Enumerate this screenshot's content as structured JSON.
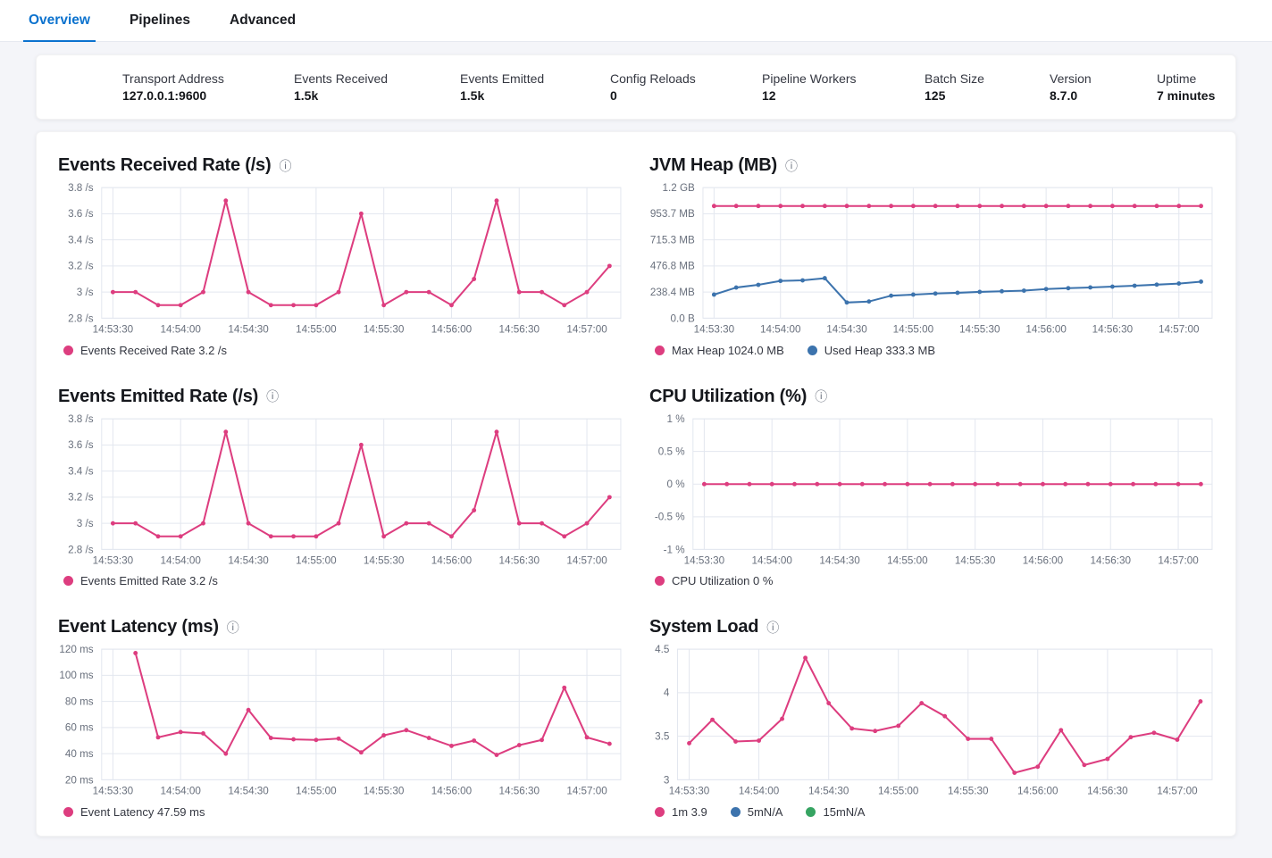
{
  "tabs": [
    {
      "label": "Overview",
      "active": true
    },
    {
      "label": "Pipelines",
      "active": false
    },
    {
      "label": "Advanced",
      "active": false
    }
  ],
  "stats": [
    {
      "label": "Transport Address",
      "value": "127.0.0.1:9600"
    },
    {
      "label": "Events Received",
      "value": "1.5k"
    },
    {
      "label": "Events Emitted",
      "value": "1.5k"
    },
    {
      "label": "Config Reloads",
      "value": "0"
    },
    {
      "label": "Pipeline Workers",
      "value": "12"
    },
    {
      "label": "Batch Size",
      "value": "125"
    },
    {
      "label": "Version",
      "value": "8.7.0"
    },
    {
      "label": "Uptime",
      "value": "7 minutes"
    }
  ],
  "colors": {
    "pink": "#dd3d7f",
    "blue": "#3c73ad",
    "green": "#36a462",
    "tab_active": "#0b72ce",
    "axis_text": "#69707d",
    "grid": "#e3e7ef",
    "legend_text": "#343741"
  },
  "info_icon_glyph": "ⓘ",
  "chart_data": [
    {
      "id": "events-received-rate",
      "type": "line",
      "title": "Events Received Rate (/s)",
      "x_domain": [
        -5,
        225
      ],
      "x_tick_seconds": [
        0,
        30,
        60,
        90,
        120,
        150,
        180,
        210
      ],
      "x_tick_labels": [
        "14:53:30",
        "14:54:00",
        "14:54:30",
        "14:55:00",
        "14:55:30",
        "14:56:00",
        "14:56:30",
        "14:57:00"
      ],
      "y_domain": [
        2.8,
        3.8
      ],
      "y_ticks": [
        {
          "label": "3.8 /s",
          "value": 3.8
        },
        {
          "label": "3.6 /s",
          "value": 3.6
        },
        {
          "label": "3.4 /s",
          "value": 3.4
        },
        {
          "label": "3.2 /s",
          "value": 3.2
        },
        {
          "label": "3 /s",
          "value": 3.0
        },
        {
          "label": "2.8 /s",
          "value": 2.8
        }
      ],
      "series": [
        {
          "name": "Events Received Rate",
          "color": "#dd3d7f",
          "points": [
            [
              0,
              3.0
            ],
            [
              10,
              3.0
            ],
            [
              20,
              2.9
            ],
            [
              30,
              2.9
            ],
            [
              40,
              3.0
            ],
            [
              50,
              3.7
            ],
            [
              60,
              3.0
            ],
            [
              70,
              2.9
            ],
            [
              80,
              2.9
            ],
            [
              90,
              2.9
            ],
            [
              100,
              3.0
            ],
            [
              110,
              3.6
            ],
            [
              120,
              2.9
            ],
            [
              130,
              3.0
            ],
            [
              140,
              3.0
            ],
            [
              150,
              2.9
            ],
            [
              160,
              3.1
            ],
            [
              170,
              3.7
            ],
            [
              180,
              3.0
            ],
            [
              190,
              3.0
            ],
            [
              200,
              2.9
            ],
            [
              210,
              3.0
            ],
            [
              220,
              3.2
            ]
          ]
        }
      ],
      "legend": [
        {
          "label": "Events Received Rate 3.2 /s",
          "color": "#dd3d7f"
        }
      ]
    },
    {
      "id": "jvm-heap",
      "type": "line",
      "title": "JVM Heap (MB)",
      "x_domain": [
        -5,
        225
      ],
      "x_tick_seconds": [
        0,
        30,
        60,
        90,
        120,
        150,
        180,
        210
      ],
      "x_tick_labels": [
        "14:53:30",
        "14:54:00",
        "14:54:30",
        "14:55:00",
        "14:55:30",
        "14:56:00",
        "14:56:30",
        "14:57:00"
      ],
      "y_domain": [
        0,
        1192.1
      ],
      "y_ticks": [
        {
          "label": "1.2 GB",
          "value": 1192.1
        },
        {
          "label": "953.7 MB",
          "value": 953.7
        },
        {
          "label": "715.3 MB",
          "value": 715.3
        },
        {
          "label": "476.8 MB",
          "value": 476.8
        },
        {
          "label": "238.4 MB",
          "value": 238.4
        },
        {
          "label": "0.0 B",
          "value": 0
        }
      ],
      "series": [
        {
          "name": "Max Heap",
          "color": "#dd3d7f",
          "points": [
            [
              0,
              1024
            ],
            [
              10,
              1024
            ],
            [
              20,
              1024
            ],
            [
              30,
              1024
            ],
            [
              40,
              1024
            ],
            [
              50,
              1024
            ],
            [
              60,
              1024
            ],
            [
              70,
              1024
            ],
            [
              80,
              1024
            ],
            [
              90,
              1024
            ],
            [
              100,
              1024
            ],
            [
              110,
              1024
            ],
            [
              120,
              1024
            ],
            [
              130,
              1024
            ],
            [
              140,
              1024
            ],
            [
              150,
              1024
            ],
            [
              160,
              1024
            ],
            [
              170,
              1024
            ],
            [
              180,
              1024
            ],
            [
              190,
              1024
            ],
            [
              200,
              1024
            ],
            [
              210,
              1024
            ],
            [
              220,
              1024
            ]
          ]
        },
        {
          "name": "Used Heap",
          "color": "#3c73ad",
          "points": [
            [
              0,
              215
            ],
            [
              10,
              280
            ],
            [
              20,
              305
            ],
            [
              30,
              340
            ],
            [
              40,
              345
            ],
            [
              50,
              365
            ],
            [
              60,
              143
            ],
            [
              70,
              152
            ],
            [
              80,
              205
            ],
            [
              90,
              215
            ],
            [
              100,
              225
            ],
            [
              110,
              232
            ],
            [
              120,
              240
            ],
            [
              130,
              246
            ],
            [
              140,
              252
            ],
            [
              150,
              266
            ],
            [
              160,
              274
            ],
            [
              170,
              281
            ],
            [
              180,
              288
            ],
            [
              190,
              296
            ],
            [
              200,
              306
            ],
            [
              210,
              316
            ],
            [
              220,
              333.3
            ]
          ]
        }
      ],
      "legend": [
        {
          "label": "Max Heap 1024.0 MB",
          "color": "#dd3d7f"
        },
        {
          "label": "Used Heap 333.3 MB",
          "color": "#3c73ad"
        }
      ]
    },
    {
      "id": "events-emitted-rate",
      "type": "line",
      "title": "Events Emitted Rate (/s)",
      "x_domain": [
        -5,
        225
      ],
      "x_tick_seconds": [
        0,
        30,
        60,
        90,
        120,
        150,
        180,
        210
      ],
      "x_tick_labels": [
        "14:53:30",
        "14:54:00",
        "14:54:30",
        "14:55:00",
        "14:55:30",
        "14:56:00",
        "14:56:30",
        "14:57:00"
      ],
      "y_domain": [
        2.8,
        3.8
      ],
      "y_ticks": [
        {
          "label": "3.8 /s",
          "value": 3.8
        },
        {
          "label": "3.6 /s",
          "value": 3.6
        },
        {
          "label": "3.4 /s",
          "value": 3.4
        },
        {
          "label": "3.2 /s",
          "value": 3.2
        },
        {
          "label": "3 /s",
          "value": 3.0
        },
        {
          "label": "2.8 /s",
          "value": 2.8
        }
      ],
      "series": [
        {
          "name": "Events Emitted Rate",
          "color": "#dd3d7f",
          "points": [
            [
              0,
              3.0
            ],
            [
              10,
              3.0
            ],
            [
              20,
              2.9
            ],
            [
              30,
              2.9
            ],
            [
              40,
              3.0
            ],
            [
              50,
              3.7
            ],
            [
              60,
              3.0
            ],
            [
              70,
              2.9
            ],
            [
              80,
              2.9
            ],
            [
              90,
              2.9
            ],
            [
              100,
              3.0
            ],
            [
              110,
              3.6
            ],
            [
              120,
              2.9
            ],
            [
              130,
              3.0
            ],
            [
              140,
              3.0
            ],
            [
              150,
              2.9
            ],
            [
              160,
              3.1
            ],
            [
              170,
              3.7
            ],
            [
              180,
              3.0
            ],
            [
              190,
              3.0
            ],
            [
              200,
              2.9
            ],
            [
              210,
              3.0
            ],
            [
              220,
              3.2
            ]
          ]
        }
      ],
      "legend": [
        {
          "label": "Events Emitted Rate 3.2 /s",
          "color": "#dd3d7f"
        }
      ]
    },
    {
      "id": "cpu-utilization",
      "type": "line",
      "title": "CPU Utilization (%)",
      "x_domain": [
        -5,
        225
      ],
      "x_tick_seconds": [
        0,
        30,
        60,
        90,
        120,
        150,
        180,
        210
      ],
      "x_tick_labels": [
        "14:53:30",
        "14:54:00",
        "14:54:30",
        "14:55:00",
        "14:55:30",
        "14:56:00",
        "14:56:30",
        "14:57:00"
      ],
      "y_domain": [
        -1,
        1
      ],
      "y_ticks": [
        {
          "label": "1 %",
          "value": 1
        },
        {
          "label": "0.5 %",
          "value": 0.5
        },
        {
          "label": "0 %",
          "value": 0
        },
        {
          "label": "-0.5 %",
          "value": -0.5
        },
        {
          "label": "-1 %",
          "value": -1
        }
      ],
      "series": [
        {
          "name": "CPU Utilization",
          "color": "#dd3d7f",
          "points": [
            [
              0,
              0
            ],
            [
              10,
              0
            ],
            [
              20,
              0
            ],
            [
              30,
              0
            ],
            [
              40,
              0
            ],
            [
              50,
              0
            ],
            [
              60,
              0
            ],
            [
              70,
              0
            ],
            [
              80,
              0
            ],
            [
              90,
              0
            ],
            [
              100,
              0
            ],
            [
              110,
              0
            ],
            [
              120,
              0
            ],
            [
              130,
              0
            ],
            [
              140,
              0
            ],
            [
              150,
              0
            ],
            [
              160,
              0
            ],
            [
              170,
              0
            ],
            [
              180,
              0
            ],
            [
              190,
              0
            ],
            [
              200,
              0
            ],
            [
              210,
              0
            ],
            [
              220,
              0
            ]
          ]
        }
      ],
      "legend": [
        {
          "label": "CPU Utilization 0 %",
          "color": "#dd3d7f"
        }
      ]
    },
    {
      "id": "event-latency",
      "type": "line",
      "title": "Event Latency (ms)",
      "x_domain": [
        -5,
        225
      ],
      "x_tick_seconds": [
        0,
        30,
        60,
        90,
        120,
        150,
        180,
        210
      ],
      "x_tick_labels": [
        "14:53:30",
        "14:54:00",
        "14:54:30",
        "14:55:00",
        "14:55:30",
        "14:56:00",
        "14:56:30",
        "14:57:00"
      ],
      "y_domain": [
        20,
        120
      ],
      "y_ticks": [
        {
          "label": "120 ms",
          "value": 120
        },
        {
          "label": "100 ms",
          "value": 100
        },
        {
          "label": "80 ms",
          "value": 80
        },
        {
          "label": "60 ms",
          "value": 60
        },
        {
          "label": "40 ms",
          "value": 40
        },
        {
          "label": "20 ms",
          "value": 20
        }
      ],
      "series": [
        {
          "name": "Event Latency",
          "color": "#dd3d7f",
          "points": [
            [
              10,
              117
            ],
            [
              20,
              52.5
            ],
            [
              30,
              56.5
            ],
            [
              40,
              55.5
            ],
            [
              50,
              40
            ],
            [
              60,
              73.5
            ],
            [
              70,
              52
            ],
            [
              80,
              51
            ],
            [
              90,
              50.5
            ],
            [
              100,
              51.5
            ],
            [
              110,
              41
            ],
            [
              120,
              54
            ],
            [
              130,
              58
            ],
            [
              140,
              52
            ],
            [
              150,
              46
            ],
            [
              160,
              50
            ],
            [
              170,
              39
            ],
            [
              180,
              46.5
            ],
            [
              190,
              50.5
            ],
            [
              200,
              90.5
            ],
            [
              210,
              52.5
            ],
            [
              220,
              47.59
            ]
          ]
        }
      ],
      "legend": [
        {
          "label": "Event Latency 47.59 ms",
          "color": "#dd3d7f"
        }
      ]
    },
    {
      "id": "system-load",
      "type": "line",
      "title": "System Load",
      "x_domain": [
        -5,
        225
      ],
      "x_tick_seconds": [
        0,
        30,
        60,
        90,
        120,
        150,
        180,
        210
      ],
      "x_tick_labels": [
        "14:53:30",
        "14:54:00",
        "14:54:30",
        "14:55:00",
        "14:55:30",
        "14:56:00",
        "14:56:30",
        "14:57:00"
      ],
      "y_domain": [
        3,
        4.5
      ],
      "y_ticks": [
        {
          "label": "4.5",
          "value": 4.5
        },
        {
          "label": "4",
          "value": 4
        },
        {
          "label": "3.5",
          "value": 3.5
        },
        {
          "label": "3",
          "value": 3
        }
      ],
      "series": [
        {
          "name": "1m",
          "color": "#dd3d7f",
          "points": [
            [
              0,
              3.42
            ],
            [
              10,
              3.69
            ],
            [
              20,
              3.44
            ],
            [
              30,
              3.45
            ],
            [
              40,
              3.7
            ],
            [
              50,
              4.4
            ],
            [
              60,
              3.88
            ],
            [
              70,
              3.59
            ],
            [
              80,
              3.56
            ],
            [
              90,
              3.62
            ],
            [
              100,
              3.88
            ],
            [
              110,
              3.73
            ],
            [
              120,
              3.47
            ],
            [
              130,
              3.47
            ],
            [
              140,
              3.08
            ],
            [
              150,
              3.15
            ],
            [
              160,
              3.57
            ],
            [
              170,
              3.17
            ],
            [
              180,
              3.24
            ],
            [
              190,
              3.49
            ],
            [
              200,
              3.54
            ],
            [
              210,
              3.46
            ],
            [
              220,
              3.9
            ]
          ]
        }
      ],
      "legend": [
        {
          "label": "1m 3.9",
          "color": "#dd3d7f"
        },
        {
          "label": "5mN/A",
          "color": "#3c73ad"
        },
        {
          "label": "15mN/A",
          "color": "#36a462"
        }
      ]
    }
  ]
}
